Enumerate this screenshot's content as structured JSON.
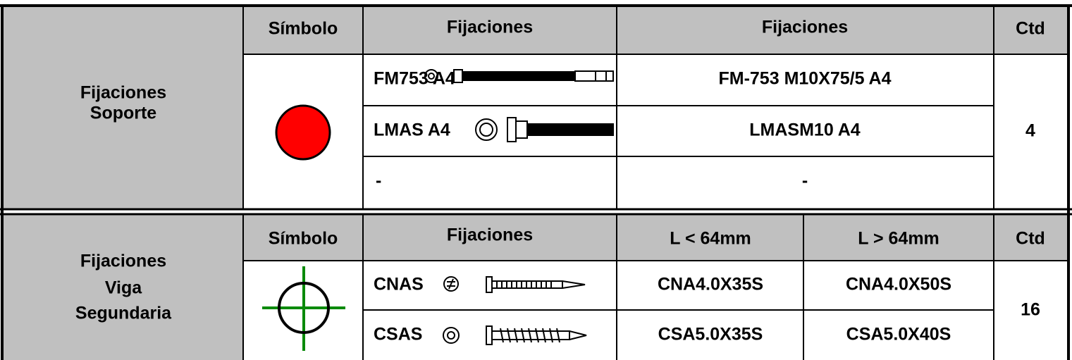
{
  "sections": [
    {
      "label": [
        "Fijaciones",
        "Soporte"
      ],
      "headers": [
        "Símbolo",
        "Fijaciones",
        "Fijaciones",
        "Ctd"
      ],
      "rows": [
        [
          "FM753 A4",
          "FM-753 M10X75/5 A4"
        ],
        [
          "LMAS A4",
          "LMASM10 A4"
        ],
        [
          "-",
          "-"
        ]
      ],
      "quantity": "4"
    },
    {
      "label": [
        "Fijaciones",
        "Viga",
        "Segundaria"
      ],
      "headers": [
        "Símbolo",
        "Fijaciones",
        "L < 64mm",
        "L > 64mm",
        "Ctd"
      ],
      "rows": [
        [
          "CNAS",
          "CNA4.0X35S",
          "CNA4.0X50S"
        ],
        [
          "CSAS",
          "CSA5.0X35S",
          "CSA5.0X40S"
        ]
      ],
      "quantity": "16"
    }
  ]
}
